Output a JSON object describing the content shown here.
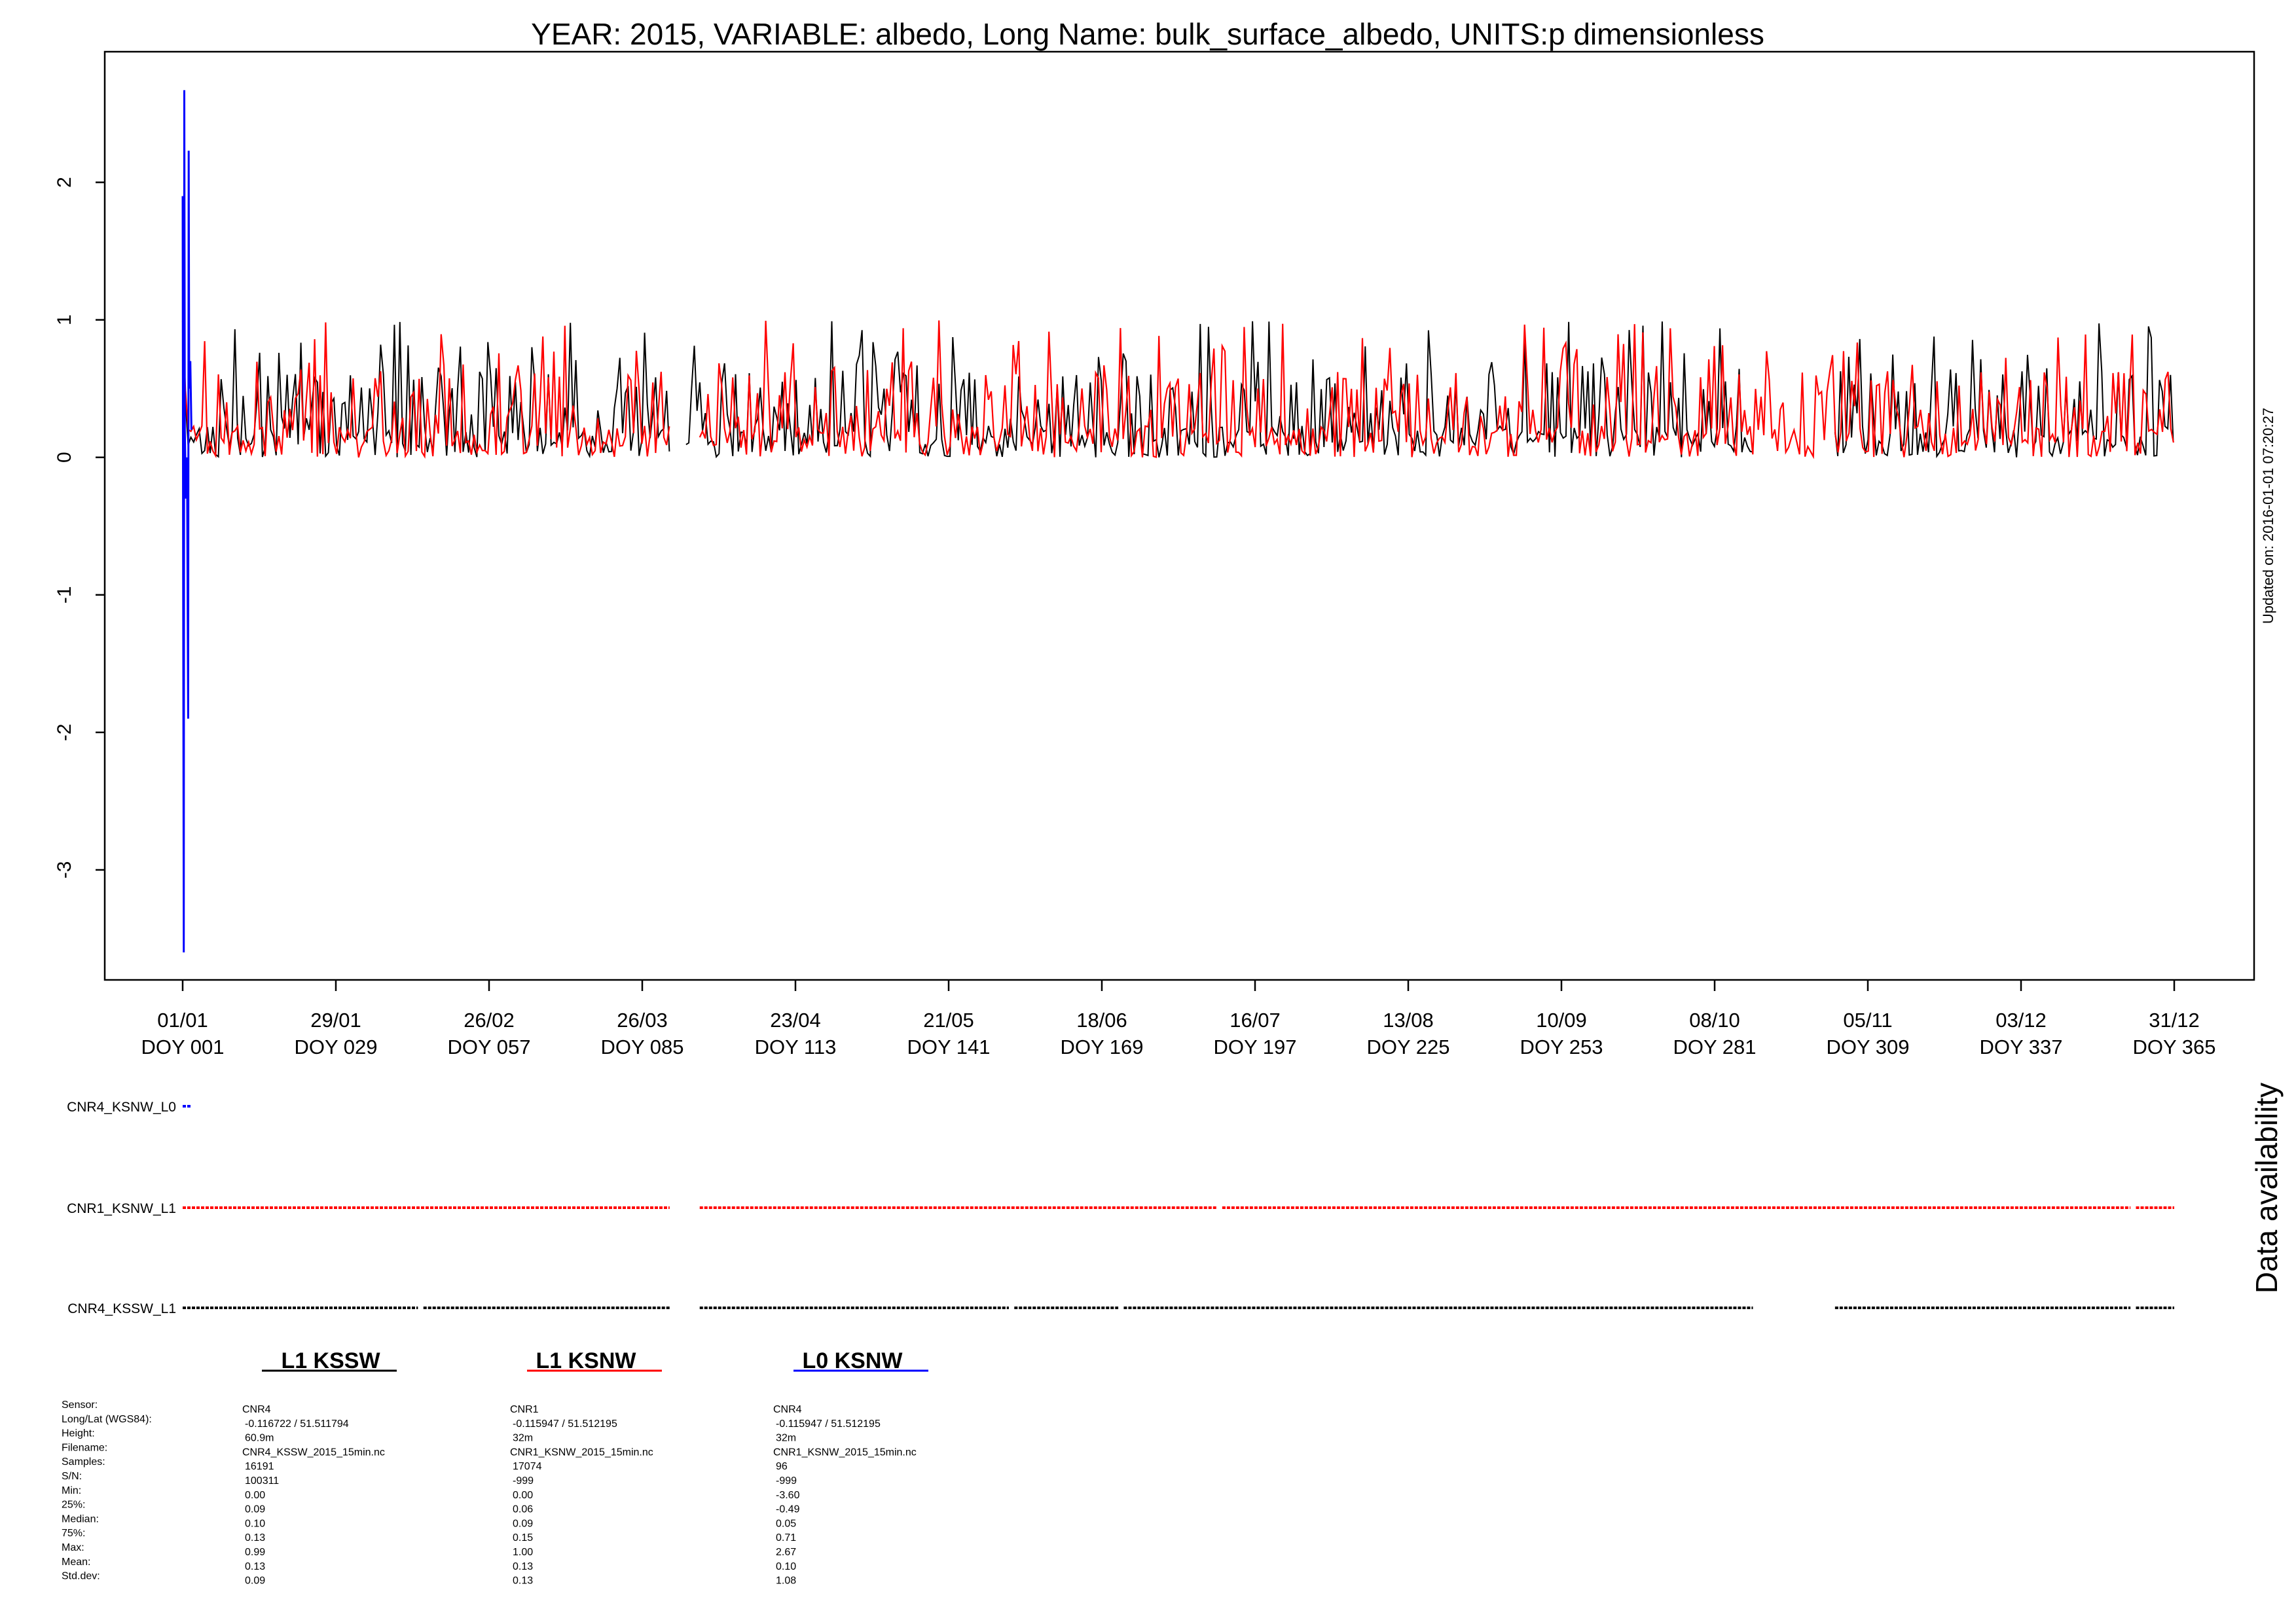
{
  "chart_data": {
    "type": "line",
    "title": "YEAR: 2015, VARIABLE: albedo, Long Name: bulk_surface_albedo, UNITS:p dimensionless",
    "updated_text": "Updated on: 2016-01-01 07:20:27",
    "availability_label": "Data availability",
    "x_range_doy": [
      1,
      365
    ],
    "ylim": [
      -3.8,
      2.95
    ],
    "y_ticks": [
      2,
      1,
      0,
      -1,
      -2,
      -3
    ],
    "y_tick_labels": [
      "2",
      "1",
      "0",
      "-1",
      "-2",
      "-3"
    ],
    "x_ticks": [
      {
        "doy": 1,
        "date": "01/01",
        "label": "DOY 001"
      },
      {
        "doy": 29,
        "date": "29/01",
        "label": "DOY 029"
      },
      {
        "doy": 57,
        "date": "26/02",
        "label": "DOY 057"
      },
      {
        "doy": 85,
        "date": "26/03",
        "label": "DOY 085"
      },
      {
        "doy": 113,
        "date": "23/04",
        "label": "DOY 113"
      },
      {
        "doy": 141,
        "date": "21/05",
        "label": "DOY 141"
      },
      {
        "doy": 169,
        "date": "18/06",
        "label": "DOY 169"
      },
      {
        "doy": 197,
        "date": "16/07",
        "label": "DOY 197"
      },
      {
        "doy": 225,
        "date": "13/08",
        "label": "DOY 225"
      },
      {
        "doy": 253,
        "date": "10/09",
        "label": "DOY 253"
      },
      {
        "doy": 281,
        "date": "08/10",
        "label": "DOY 281"
      },
      {
        "doy": 309,
        "date": "05/11",
        "label": "DOY 309"
      },
      {
        "doy": 337,
        "date": "03/12",
        "label": "DOY 337"
      },
      {
        "doy": 365,
        "date": "31/12",
        "label": "DOY 365"
      }
    ],
    "series": [
      {
        "name": "L1 KSSW",
        "color": "#000000",
        "typical_min": 0.0,
        "typical_max": 0.99,
        "segments_doy": [
          [
            1,
            90
          ],
          [
            93,
            288
          ],
          [
            303,
            365
          ]
        ]
      },
      {
        "name": "L1 KSNW",
        "color": "#ff0000",
        "typical_min": 0.0,
        "typical_max": 1.0,
        "segments_doy": [
          [
            1,
            90
          ],
          [
            95.5,
            365
          ]
        ]
      },
      {
        "name": "L0 KSNW",
        "color": "#0000ff",
        "points": [
          [
            1.0,
            1.9
          ],
          [
            1.1,
            -1.0
          ],
          [
            1.2,
            -3.6
          ],
          [
            1.3,
            2.67
          ],
          [
            1.4,
            0.2
          ],
          [
            1.6,
            -0.3
          ],
          [
            1.8,
            0.0
          ],
          [
            2.0,
            -1.9
          ],
          [
            2.1,
            2.23
          ],
          [
            2.2,
            0.5
          ],
          [
            2.4,
            0.7
          ],
          [
            2.6,
            0.2
          ]
        ]
      }
    ],
    "availability": [
      {
        "label": "CNR4_KSNW_L0",
        "color": "#0000ff",
        "segments_doy": [
          [
            1,
            2.5
          ]
        ]
      },
      {
        "label": "CNR1_KSNW_L1",
        "color": "#ff0000",
        "segments_doy": [
          [
            1,
            90
          ],
          [
            95.5,
            190
          ],
          [
            191,
            357
          ],
          [
            358,
            365
          ]
        ]
      },
      {
        "label": "CNR4_KSSW_L1",
        "color": "#000000",
        "segments_doy": [
          [
            1,
            44
          ],
          [
            45,
            90
          ],
          [
            95.5,
            152
          ],
          [
            153,
            172
          ],
          [
            173,
            288
          ],
          [
            303,
            357
          ],
          [
            358,
            365
          ]
        ]
      }
    ],
    "stats_row_labels": [
      "Sensor:",
      "Long/Lat (WGS84):",
      "Height:",
      "Filename:",
      "Samples:",
      "S/N:",
      "Min:",
      "25%:",
      "Median:",
      "75%:",
      "Max:",
      "Mean:",
      "Std.dev:"
    ],
    "stats": [
      {
        "heading": "L1 KSSW",
        "color": "#000000",
        "values": [
          "CNR4",
          "-0.116722 / 51.511794",
          "60.9m",
          "CNR4_KSSW_2015_15min.nc",
          "16191",
          "100311",
          "0.00",
          "0.09",
          "0.10",
          "0.13",
          "0.99",
          "0.13",
          "0.09"
        ]
      },
      {
        "heading": "L1 KSNW",
        "color": "#ff0000",
        "values": [
          "CNR1",
          "-0.115947 / 51.512195",
          "32m",
          "CNR1_KSNW_2015_15min.nc",
          "17074",
          "-999",
          "0.00",
          "0.06",
          "0.09",
          "0.15",
          "1.00",
          "0.13",
          "0.13"
        ]
      },
      {
        "heading": "L0 KSNW",
        "color": "#0000ff",
        "values": [
          "CNR4",
          "-0.115947 / 51.512195",
          "32m",
          "CNR1_KSNW_2015_15min.nc",
          "96",
          "-999",
          "-3.60",
          "-0.49",
          "0.05",
          "0.71",
          "2.67",
          "0.10",
          "1.08"
        ]
      }
    ]
  }
}
